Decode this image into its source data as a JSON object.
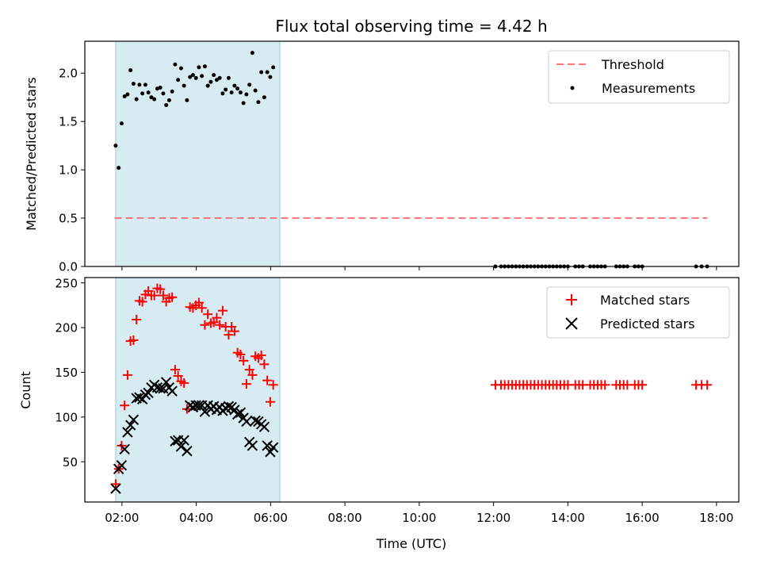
{
  "figure": {
    "title": "Flux total observing time = 4.42 h"
  },
  "chart_data": [
    {
      "type": "scatter",
      "panel": "top",
      "ylabel": "Matched/Predicted stars",
      "xlabel": "",
      "xlim": [
        1.0,
        18.6
      ],
      "ylim": [
        0,
        2.33
      ],
      "yticks": [
        0.0,
        0.5,
        1.0,
        1.5,
        2.0
      ],
      "ytick_labels": [
        "0.0",
        "0.5",
        "1.0",
        "1.5",
        "2.0"
      ],
      "shaded_span": [
        1.83,
        6.25
      ],
      "shaded_color": "#add8e6",
      "legend_position": "top-right",
      "threshold": {
        "name": "Threshold",
        "y": 0.5,
        "x": [
          1.8,
          17.75
        ],
        "color": "#ff7777",
        "style": "dashed"
      },
      "series": [
        {
          "name": "Measurements",
          "color": "#000000",
          "marker": "dot",
          "points": [
            [
              1.83,
              1.25
            ],
            [
              1.91,
              1.02
            ],
            [
              1.99,
              1.48
            ],
            [
              2.07,
              1.76
            ],
            [
              2.15,
              1.78
            ],
            [
              2.23,
              2.03
            ],
            [
              2.31,
              1.89
            ],
            [
              2.39,
              1.73
            ],
            [
              2.47,
              1.88
            ],
            [
              2.55,
              1.79
            ],
            [
              2.63,
              1.88
            ],
            [
              2.71,
              1.8
            ],
            [
              2.79,
              1.75
            ],
            [
              2.87,
              1.73
            ],
            [
              2.95,
              1.84
            ],
            [
              3.03,
              1.85
            ],
            [
              3.11,
              1.79
            ],
            [
              3.19,
              1.67
            ],
            [
              3.27,
              1.72
            ],
            [
              3.35,
              1.81
            ],
            [
              3.43,
              2.09
            ],
            [
              3.51,
              1.93
            ],
            [
              3.59,
              2.05
            ],
            [
              3.67,
              1.87
            ],
            [
              3.75,
              1.72
            ],
            [
              3.83,
              1.96
            ],
            [
              3.91,
              1.98
            ],
            [
              3.99,
              1.95
            ],
            [
              4.07,
              2.06
            ],
            [
              4.15,
              1.97
            ],
            [
              4.23,
              2.07
            ],
            [
              4.31,
              1.87
            ],
            [
              4.39,
              1.91
            ],
            [
              4.47,
              1.98
            ],
            [
              4.55,
              1.93
            ],
            [
              4.63,
              1.95
            ],
            [
              4.71,
              1.79
            ],
            [
              4.79,
              1.83
            ],
            [
              4.87,
              1.95
            ],
            [
              4.95,
              1.8
            ],
            [
              5.03,
              1.87
            ],
            [
              5.11,
              1.84
            ],
            [
              5.19,
              1.8
            ],
            [
              5.27,
              1.69
            ],
            [
              5.35,
              1.78
            ],
            [
              5.43,
              1.88
            ],
            [
              5.51,
              2.21
            ],
            [
              5.59,
              1.82
            ],
            [
              5.67,
              1.7
            ],
            [
              5.75,
              2.01
            ],
            [
              5.83,
              1.75
            ],
            [
              5.91,
              2.01
            ],
            [
              5.99,
              1.96
            ],
            [
              6.07,
              2.06
            ],
            [
              12.05,
              0
            ],
            [
              12.2,
              0
            ],
            [
              12.3,
              0
            ],
            [
              12.4,
              0
            ],
            [
              12.5,
              0
            ],
            [
              12.6,
              0
            ],
            [
              12.7,
              0
            ],
            [
              12.8,
              0
            ],
            [
              12.9,
              0
            ],
            [
              13.0,
              0
            ],
            [
              13.1,
              0
            ],
            [
              13.2,
              0
            ],
            [
              13.3,
              0
            ],
            [
              13.4,
              0
            ],
            [
              13.5,
              0
            ],
            [
              13.6,
              0
            ],
            [
              13.7,
              0
            ],
            [
              13.8,
              0
            ],
            [
              13.9,
              0
            ],
            [
              14.0,
              0
            ],
            [
              14.2,
              0
            ],
            [
              14.3,
              0
            ],
            [
              14.4,
              0
            ],
            [
              14.6,
              0
            ],
            [
              14.7,
              0
            ],
            [
              14.8,
              0
            ],
            [
              14.9,
              0
            ],
            [
              15.0,
              0
            ],
            [
              15.3,
              0
            ],
            [
              15.4,
              0
            ],
            [
              15.5,
              0
            ],
            [
              15.6,
              0
            ],
            [
              15.8,
              0
            ],
            [
              15.9,
              0
            ],
            [
              16.0,
              0
            ],
            [
              17.45,
              0
            ],
            [
              17.6,
              0
            ],
            [
              17.75,
              0
            ]
          ]
        }
      ]
    },
    {
      "type": "scatter",
      "panel": "bottom",
      "ylabel": "Count",
      "xlabel": "Time (UTC)",
      "xlim": [
        1.0,
        18.6
      ],
      "ylim": [
        5,
        256
      ],
      "yticks": [
        50,
        100,
        150,
        200,
        250
      ],
      "ytick_labels": [
        "50",
        "100",
        "150",
        "200",
        "250"
      ],
      "xticks": [
        2,
        4,
        6,
        8,
        10,
        12,
        14,
        16,
        18
      ],
      "xtick_labels": [
        "02:00",
        "04:00",
        "06:00",
        "08:00",
        "10:00",
        "12:00",
        "14:00",
        "16:00",
        "18:00"
      ],
      "shaded_span": [
        1.83,
        6.25
      ],
      "shaded_color": "#add8e6",
      "legend_position": "top-right",
      "series": [
        {
          "name": "Matched stars",
          "color": "#ff0000",
          "marker": "plus",
          "points": [
            [
              1.83,
              25
            ],
            [
              1.91,
              42
            ],
            [
              1.99,
              68
            ],
            [
              2.07,
              113
            ],
            [
              2.15,
              147
            ],
            [
              2.23,
              185
            ],
            [
              2.31,
              186
            ],
            [
              2.39,
              209
            ],
            [
              2.47,
              230
            ],
            [
              2.55,
              229
            ],
            [
              2.63,
              237
            ],
            [
              2.71,
              241
            ],
            [
              2.79,
              236
            ],
            [
              2.87,
              236
            ],
            [
              2.95,
              244
            ],
            [
              3.03,
              243
            ],
            [
              3.11,
              236
            ],
            [
              3.19,
              229
            ],
            [
              3.27,
              233
            ],
            [
              3.35,
              234
            ],
            [
              3.43,
              153
            ],
            [
              3.51,
              146
            ],
            [
              3.59,
              140
            ],
            [
              3.67,
              138
            ],
            [
              3.75,
              109
            ],
            [
              3.83,
              223
            ],
            [
              3.91,
              222
            ],
            [
              3.99,
              225
            ],
            [
              4.07,
              228
            ],
            [
              4.15,
              222
            ],
            [
              4.23,
              203
            ],
            [
              4.31,
              215
            ],
            [
              4.39,
              205
            ],
            [
              4.47,
              206
            ],
            [
              4.55,
              211
            ],
            [
              4.63,
              203
            ],
            [
              4.71,
              219
            ],
            [
              4.79,
              201
            ],
            [
              4.87,
              192
            ],
            [
              4.95,
              201
            ],
            [
              5.03,
              196
            ],
            [
              5.11,
              172
            ],
            [
              5.19,
              170
            ],
            [
              5.27,
              163
            ],
            [
              5.35,
              137
            ],
            [
              5.43,
              153
            ],
            [
              5.51,
              147
            ],
            [
              5.59,
              168
            ],
            [
              5.67,
              166
            ],
            [
              5.75,
              169
            ],
            [
              5.83,
              159
            ],
            [
              5.91,
              141
            ],
            [
              5.99,
              117
            ],
            [
              6.07,
              136
            ],
            [
              12.05,
              136
            ],
            [
              12.2,
              136
            ],
            [
              12.3,
              136
            ],
            [
              12.4,
              136
            ],
            [
              12.5,
              136
            ],
            [
              12.6,
              136
            ],
            [
              12.7,
              136
            ],
            [
              12.8,
              136
            ],
            [
              12.9,
              136
            ],
            [
              13.0,
              136
            ],
            [
              13.1,
              136
            ],
            [
              13.2,
              136
            ],
            [
              13.3,
              136
            ],
            [
              13.4,
              136
            ],
            [
              13.5,
              136
            ],
            [
              13.6,
              136
            ],
            [
              13.7,
              136
            ],
            [
              13.8,
              136
            ],
            [
              13.9,
              136
            ],
            [
              14.0,
              136
            ],
            [
              14.2,
              136
            ],
            [
              14.3,
              136
            ],
            [
              14.4,
              136
            ],
            [
              14.6,
              136
            ],
            [
              14.7,
              136
            ],
            [
              14.8,
              136
            ],
            [
              14.9,
              136
            ],
            [
              15.0,
              136
            ],
            [
              15.3,
              136
            ],
            [
              15.4,
              136
            ],
            [
              15.5,
              136
            ],
            [
              15.6,
              136
            ],
            [
              15.8,
              136
            ],
            [
              15.9,
              136
            ],
            [
              16.0,
              136
            ],
            [
              17.45,
              136
            ],
            [
              17.6,
              136
            ],
            [
              17.75,
              136
            ]
          ]
        },
        {
          "name": "Predicted stars",
          "color": "#000000",
          "marker": "x",
          "points": [
            [
              1.83,
              20
            ],
            [
              1.91,
              42
            ],
            [
              1.99,
              46
            ],
            [
              2.07,
              64
            ],
            [
              2.15,
              83
            ],
            [
              2.23,
              91
            ],
            [
              2.31,
              97
            ],
            [
              2.39,
              121
            ],
            [
              2.47,
              122
            ],
            [
              2.55,
              120
            ],
            [
              2.63,
              125
            ],
            [
              2.71,
              127
            ],
            [
              2.79,
              133
            ],
            [
              2.87,
              136
            ],
            [
              2.95,
              133
            ],
            [
              3.03,
              132
            ],
            [
              3.11,
              132
            ],
            [
              3.19,
              139
            ],
            [
              3.27,
              133
            ],
            [
              3.35,
              129
            ],
            [
              3.43,
              73
            ],
            [
              3.51,
              74
            ],
            [
              3.59,
              67
            ],
            [
              3.67,
              74
            ],
            [
              3.75,
              62
            ],
            [
              3.83,
              113
            ],
            [
              3.91,
              111
            ],
            [
              3.99,
              113
            ],
            [
              4.07,
              113
            ],
            [
              4.15,
              113
            ],
            [
              4.23,
              106
            ],
            [
              4.31,
              113
            ],
            [
              4.39,
              109
            ],
            [
              4.47,
              112
            ],
            [
              4.55,
              108
            ],
            [
              4.63,
              111
            ],
            [
              4.71,
              107
            ],
            [
              4.79,
              110
            ],
            [
              4.87,
              112
            ],
            [
              4.95,
              111
            ],
            [
              5.03,
              108
            ],
            [
              5.11,
              103
            ],
            [
              5.19,
              105
            ],
            [
              5.27,
              99
            ],
            [
              5.35,
              95
            ],
            [
              5.43,
              72
            ],
            [
              5.51,
              68
            ],
            [
              5.59,
              96
            ],
            [
              5.67,
              95
            ],
            [
              5.75,
              92
            ],
            [
              5.83,
              89
            ],
            [
              5.91,
              68
            ],
            [
              5.99,
              61
            ],
            [
              6.07,
              66
            ]
          ]
        }
      ]
    }
  ]
}
